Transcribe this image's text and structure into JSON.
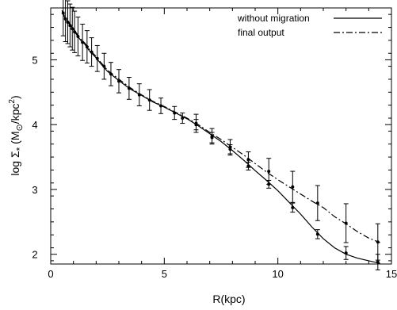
{
  "chart_data": {
    "type": "line",
    "title": "",
    "xlabel": "R(kpc)",
    "ylabel": {
      "prefix": "log Σ",
      "sub": "*",
      "mid": " (M",
      "sub2": "⊙",
      "post": "/kpc",
      "sup": "2",
      "end": ")"
    },
    "xlim": [
      0,
      15
    ],
    "ylim": [
      1.85,
      5.8
    ],
    "xticks": [
      0,
      5,
      10,
      15
    ],
    "xtick_labels": [
      "0",
      "5",
      "10",
      "15"
    ],
    "yticks": [
      2,
      3,
      4,
      5
    ],
    "ytick_labels": [
      "2",
      "3",
      "4",
      "5"
    ],
    "grid": false,
    "legend_position": "top-right",
    "series": [
      {
        "name": "without migration",
        "style": "solid",
        "color": "#000000",
        "x": [
          0.5,
          0.6,
          0.7,
          0.8,
          0.9,
          1.0,
          1.1,
          1.2,
          1.3,
          1.4,
          1.5,
          1.7,
          2.0,
          2.2,
          2.5,
          3.0,
          3.5,
          4.0,
          4.5,
          5.0,
          5.5,
          6.0,
          6.5,
          7.0,
          7.5,
          8.0,
          8.5,
          9.0,
          9.5,
          10.0,
          10.5,
          11.0,
          11.5,
          12.0,
          12.5,
          13.0,
          13.5,
          14.0,
          14.5
        ],
        "values": [
          5.76,
          5.66,
          5.6,
          5.56,
          5.51,
          5.46,
          5.41,
          5.36,
          5.31,
          5.27,
          5.24,
          5.14,
          5.03,
          4.94,
          4.82,
          4.68,
          4.55,
          4.45,
          4.35,
          4.27,
          4.18,
          4.09,
          3.98,
          3.86,
          3.74,
          3.6,
          3.45,
          3.29,
          3.14,
          2.98,
          2.8,
          2.62,
          2.42,
          2.24,
          2.1,
          2.0,
          1.94,
          1.9,
          1.86
        ]
      },
      {
        "name": "final output",
        "style": "dash-dot",
        "color": "#000000",
        "x": [
          0.5,
          0.6,
          0.7,
          0.8,
          0.9,
          1.0,
          1.1,
          1.2,
          1.3,
          1.4,
          1.5,
          1.7,
          2.0,
          2.2,
          2.5,
          3.0,
          3.5,
          4.0,
          4.5,
          5.0,
          5.5,
          6.0,
          6.5,
          7.0,
          7.5,
          8.0,
          8.5,
          9.0,
          9.5,
          10.0,
          10.5,
          11.0,
          11.5,
          12.0,
          12.5,
          13.0,
          13.5,
          14.0,
          14.5
        ],
        "values": [
          5.76,
          5.68,
          5.62,
          5.58,
          5.53,
          5.48,
          5.43,
          5.38,
          5.33,
          5.29,
          5.26,
          5.16,
          5.05,
          4.96,
          4.84,
          4.7,
          4.57,
          4.46,
          4.36,
          4.28,
          4.19,
          4.1,
          4.0,
          3.88,
          3.77,
          3.65,
          3.53,
          3.4,
          3.27,
          3.15,
          3.04,
          2.93,
          2.82,
          2.72,
          2.58,
          2.47,
          2.35,
          2.25,
          2.18
        ]
      }
    ],
    "error_bars": [
      {
        "series": "without migration",
        "points": [
          {
            "x": 0.55,
            "y": 5.72,
            "err": 0.35
          },
          {
            "x": 0.65,
            "y": 5.63,
            "err": 0.35
          },
          {
            "x": 0.75,
            "y": 5.58,
            "err": 0.33
          },
          {
            "x": 0.85,
            "y": 5.53,
            "err": 0.33
          },
          {
            "x": 0.95,
            "y": 5.48,
            "err": 0.33
          },
          {
            "x": 1.05,
            "y": 5.43,
            "err": 0.32
          },
          {
            "x": 1.2,
            "y": 5.36,
            "err": 0.3
          },
          {
            "x": 1.4,
            "y": 5.27,
            "err": 0.28
          },
          {
            "x": 1.6,
            "y": 5.2,
            "err": 0.25
          },
          {
            "x": 1.8,
            "y": 5.12,
            "err": 0.22
          },
          {
            "x": 2.05,
            "y": 5.02,
            "err": 0.2
          },
          {
            "x": 2.35,
            "y": 4.9,
            "err": 0.2
          },
          {
            "x": 2.65,
            "y": 4.78,
            "err": 0.18
          },
          {
            "x": 3.0,
            "y": 4.67,
            "err": 0.18
          },
          {
            "x": 3.45,
            "y": 4.56,
            "err": 0.17
          },
          {
            "x": 3.9,
            "y": 4.46,
            "err": 0.17
          },
          {
            "x": 4.35,
            "y": 4.38,
            "err": 0.16
          },
          {
            "x": 4.85,
            "y": 4.29,
            "err": 0.12
          },
          {
            "x": 5.45,
            "y": 4.18,
            "err": 0.1
          },
          {
            "x": 5.8,
            "y": 4.1,
            "err": 0.08
          },
          {
            "x": 6.4,
            "y": 4.0,
            "err": 0.08
          },
          {
            "x": 7.1,
            "y": 3.8,
            "err": 0.08
          },
          {
            "x": 7.9,
            "y": 3.62,
            "err": 0.07
          },
          {
            "x": 8.7,
            "y": 3.36,
            "err": 0.06
          },
          {
            "x": 9.6,
            "y": 3.08,
            "err": 0.06
          },
          {
            "x": 10.65,
            "y": 2.72,
            "err": 0.07
          },
          {
            "x": 11.75,
            "y": 2.31,
            "err": 0.07
          },
          {
            "x": 13.0,
            "y": 2.02,
            "err": 0.1
          },
          {
            "x": 14.4,
            "y": 1.88,
            "err": 0.12
          }
        ]
      },
      {
        "series": "final output",
        "points": [
          {
            "x": 6.4,
            "y": 4.02,
            "err": 0.14
          },
          {
            "x": 7.1,
            "y": 3.82,
            "err": 0.12
          },
          {
            "x": 7.9,
            "y": 3.65,
            "err": 0.12
          },
          {
            "x": 8.7,
            "y": 3.46,
            "err": 0.12
          },
          {
            "x": 9.6,
            "y": 3.28,
            "err": 0.2
          },
          {
            "x": 10.65,
            "y": 3.04,
            "err": 0.24
          },
          {
            "x": 11.75,
            "y": 2.79,
            "err": 0.27
          },
          {
            "x": 13.0,
            "y": 2.48,
            "err": 0.3
          },
          {
            "x": 14.4,
            "y": 2.19,
            "err": 0.28
          }
        ]
      }
    ]
  }
}
